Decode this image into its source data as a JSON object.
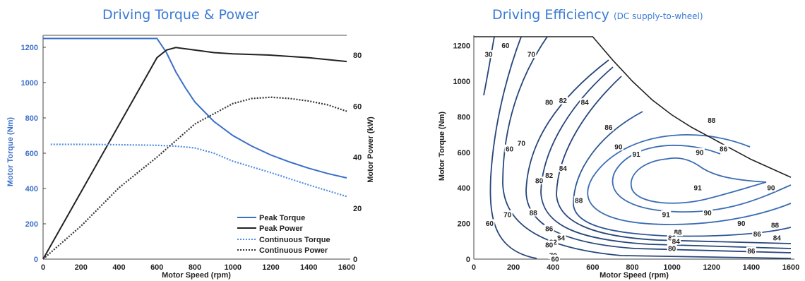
{
  "chart_data": [
    {
      "type": "line",
      "title": "Driving Torque & Power",
      "xlabel": "Motor Speed (rpm)",
      "ylabel": "Motor Torque (Nm)",
      "y2label": "Motor Power (kW)",
      "xlim": [
        0,
        1600
      ],
      "ylim": [
        0,
        1300
      ],
      "y2lim": [
        0,
        90
      ],
      "xticks": [
        "0",
        "200",
        "400",
        "600",
        "800",
        "1000",
        "1200",
        "1400",
        "1600"
      ],
      "yticks": [
        "0",
        "200",
        "400",
        "600",
        "800",
        "1000",
        "1200"
      ],
      "y2ticks": [
        "0",
        "20",
        "40",
        "60",
        "80"
      ],
      "grid": false,
      "legend_position": "bottom-right",
      "series": [
        {
          "name": "Peak Torque",
          "axis": "left",
          "style": "solid",
          "color": "#3a6fc8",
          "x": [
            0,
            600,
            650,
            700,
            750,
            800,
            900,
            1000,
            1100,
            1200,
            1300,
            1400,
            1500,
            1600
          ],
          "y": [
            1250,
            1250,
            1170,
            1060,
            970,
            890,
            780,
            700,
            640,
            590,
            550,
            515,
            485,
            460
          ]
        },
        {
          "name": "Peak Power",
          "axis": "right",
          "style": "solid",
          "color": "#222222",
          "x": [
            0,
            600,
            650,
            700,
            750,
            800,
            900,
            1000,
            1200,
            1400,
            1600
          ],
          "y": [
            0,
            79,
            82,
            83,
            82.5,
            82,
            81,
            80.5,
            80,
            79,
            77.5
          ]
        },
        {
          "name": "Continuous Torque",
          "axis": "left",
          "style": "dotted",
          "color": "#4f8de0",
          "x": [
            40,
            200,
            400,
            600,
            700,
            800,
            900,
            1000,
            1200,
            1400,
            1600
          ],
          "y": [
            650,
            650,
            648,
            645,
            640,
            630,
            600,
            555,
            490,
            420,
            355
          ]
        },
        {
          "name": "Continuous Power",
          "axis": "right",
          "style": "dotted",
          "color": "#333333",
          "x": [
            0,
            200,
            400,
            600,
            800,
            1000,
            1100,
            1200,
            1300,
            1400,
            1500,
            1600
          ],
          "y": [
            0,
            13,
            28,
            40,
            53,
            61,
            63,
            63.5,
            63,
            62,
            60.5,
            58
          ]
        },
        {
          "name": "",
          "axis": "top",
          "style": "solid",
          "color": "#888888",
          "x": [
            0,
            1600
          ],
          "y": [
            1345,
            1345
          ]
        }
      ]
    },
    {
      "type": "contour",
      "title": "Driving Efficiency",
      "subtitle": "(DC supply-to-wheel)",
      "xlabel": "Motor Speed (rpm)",
      "ylabel": "Motor Torque (Nm)",
      "xlim": [
        0,
        1600
      ],
      "ylim": [
        0,
        1250
      ],
      "xticks": [
        "0",
        "200",
        "400",
        "600",
        "800",
        "1000",
        "1200",
        "1400",
        "1600"
      ],
      "yticks": [
        "0",
        "200",
        "400",
        "600",
        "800",
        "1000",
        "1200"
      ],
      "envelope": {
        "x": [
          0,
          600,
          700,
          800,
          900,
          1000,
          1100,
          1200,
          1300,
          1400,
          1500,
          1600
        ],
        "y": [
          1250,
          1250,
          1120,
          1000,
          895,
          810,
          740,
          680,
          620,
          560,
          510,
          460
        ]
      },
      "contour_labels": [
        {
          "text": "30",
          "x": 75,
          "y": 1150
        },
        {
          "text": "60",
          "x": 160,
          "y": 1200
        },
        {
          "text": "70",
          "x": 290,
          "y": 1150
        },
        {
          "text": "80",
          "x": 380,
          "y": 880
        },
        {
          "text": "82",
          "x": 450,
          "y": 890
        },
        {
          "text": "84",
          "x": 560,
          "y": 880
        },
        {
          "text": "86",
          "x": 680,
          "y": 740
        },
        {
          "text": "90",
          "x": 730,
          "y": 630
        },
        {
          "text": "91",
          "x": 820,
          "y": 590
        },
        {
          "text": "90",
          "x": 1140,
          "y": 600
        },
        {
          "text": "86",
          "x": 1260,
          "y": 620
        },
        {
          "text": "91",
          "x": 1130,
          "y": 400
        },
        {
          "text": "90",
          "x": 1500,
          "y": 400
        },
        {
          "text": "91",
          "x": 970,
          "y": 250
        },
        {
          "text": "90",
          "x": 1180,
          "y": 260
        },
        {
          "text": "90",
          "x": 1350,
          "y": 200
        },
        {
          "text": "88",
          "x": 1520,
          "y": 190
        },
        {
          "text": "86",
          "x": 1430,
          "y": 140
        },
        {
          "text": "84",
          "x": 1530,
          "y": 120
        },
        {
          "text": "88",
          "x": 300,
          "y": 260
        },
        {
          "text": "86",
          "x": 380,
          "y": 170
        },
        {
          "text": "84",
          "x": 440,
          "y": 120
        },
        {
          "text": "82",
          "x": 400,
          "y": 95
        },
        {
          "text": "80",
          "x": 380,
          "y": 80
        },
        {
          "text": "70",
          "x": 170,
          "y": 250
        },
        {
          "text": "60",
          "x": 80,
          "y": 200
        },
        {
          "text": "70",
          "x": 400,
          "y": 20
        },
        {
          "text": "60",
          "x": 410,
          "y": 0
        },
        {
          "text": "88",
          "x": 1030,
          "y": 150
        },
        {
          "text": "86",
          "x": 1000,
          "y": 120
        },
        {
          "text": "84",
          "x": 1020,
          "y": 100
        },
        {
          "text": "80",
          "x": 1000,
          "y": 60
        },
        {
          "text": "86",
          "x": 1400,
          "y": 45
        },
        {
          "text": "60",
          "x": 180,
          "y": 620
        },
        {
          "text": "70",
          "x": 240,
          "y": 650
        },
        {
          "text": "80",
          "x": 330,
          "y": 440
        },
        {
          "text": "82",
          "x": 380,
          "y": 470
        },
        {
          "text": "84",
          "x": 450,
          "y": 510
        },
        {
          "text": "88",
          "x": 530,
          "y": 330
        },
        {
          "text": "88",
          "x": 1200,
          "y": 780
        }
      ]
    }
  ],
  "colors": {
    "title": "#3a7bd5",
    "torque_axis": "#3a6fc8",
    "contour": "#27467a",
    "contour_inner": "#3b6db3"
  }
}
